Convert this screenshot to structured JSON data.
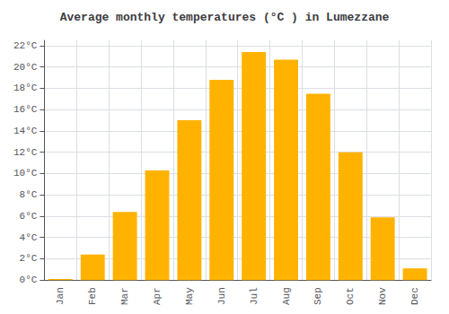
{
  "chart_data": {
    "type": "bar",
    "title": "Average monthly temperatures (°C ) in Lumezzane",
    "categories": [
      "Jan",
      "Feb",
      "Mar",
      "Apr",
      "May",
      "Jun",
      "Jul",
      "Aug",
      "Sep",
      "Oct",
      "Nov",
      "Dec"
    ],
    "values": [
      0.1,
      2.4,
      6.4,
      10.3,
      15.0,
      18.8,
      21.4,
      20.7,
      17.5,
      12.0,
      5.9,
      1.1
    ],
    "color": "#FFB300",
    "ylim": [
      0,
      22.5
    ],
    "yticks": [
      {
        "value": 0,
        "label": "0°C"
      },
      {
        "value": 2,
        "label": "2°C"
      },
      {
        "value": 4,
        "label": "4°C"
      },
      {
        "value": 6,
        "label": "6°C"
      },
      {
        "value": 8,
        "label": "8°C"
      },
      {
        "value": 10,
        "label": "10°C"
      },
      {
        "value": 12,
        "label": "12°C"
      },
      {
        "value": 14,
        "label": "14°C"
      },
      {
        "value": 16,
        "label": "16°C"
      },
      {
        "value": 18,
        "label": "18°C"
      },
      {
        "value": 20,
        "label": "20°C"
      },
      {
        "value": 22,
        "label": "22°C"
      }
    ],
    "grid": true
  }
}
